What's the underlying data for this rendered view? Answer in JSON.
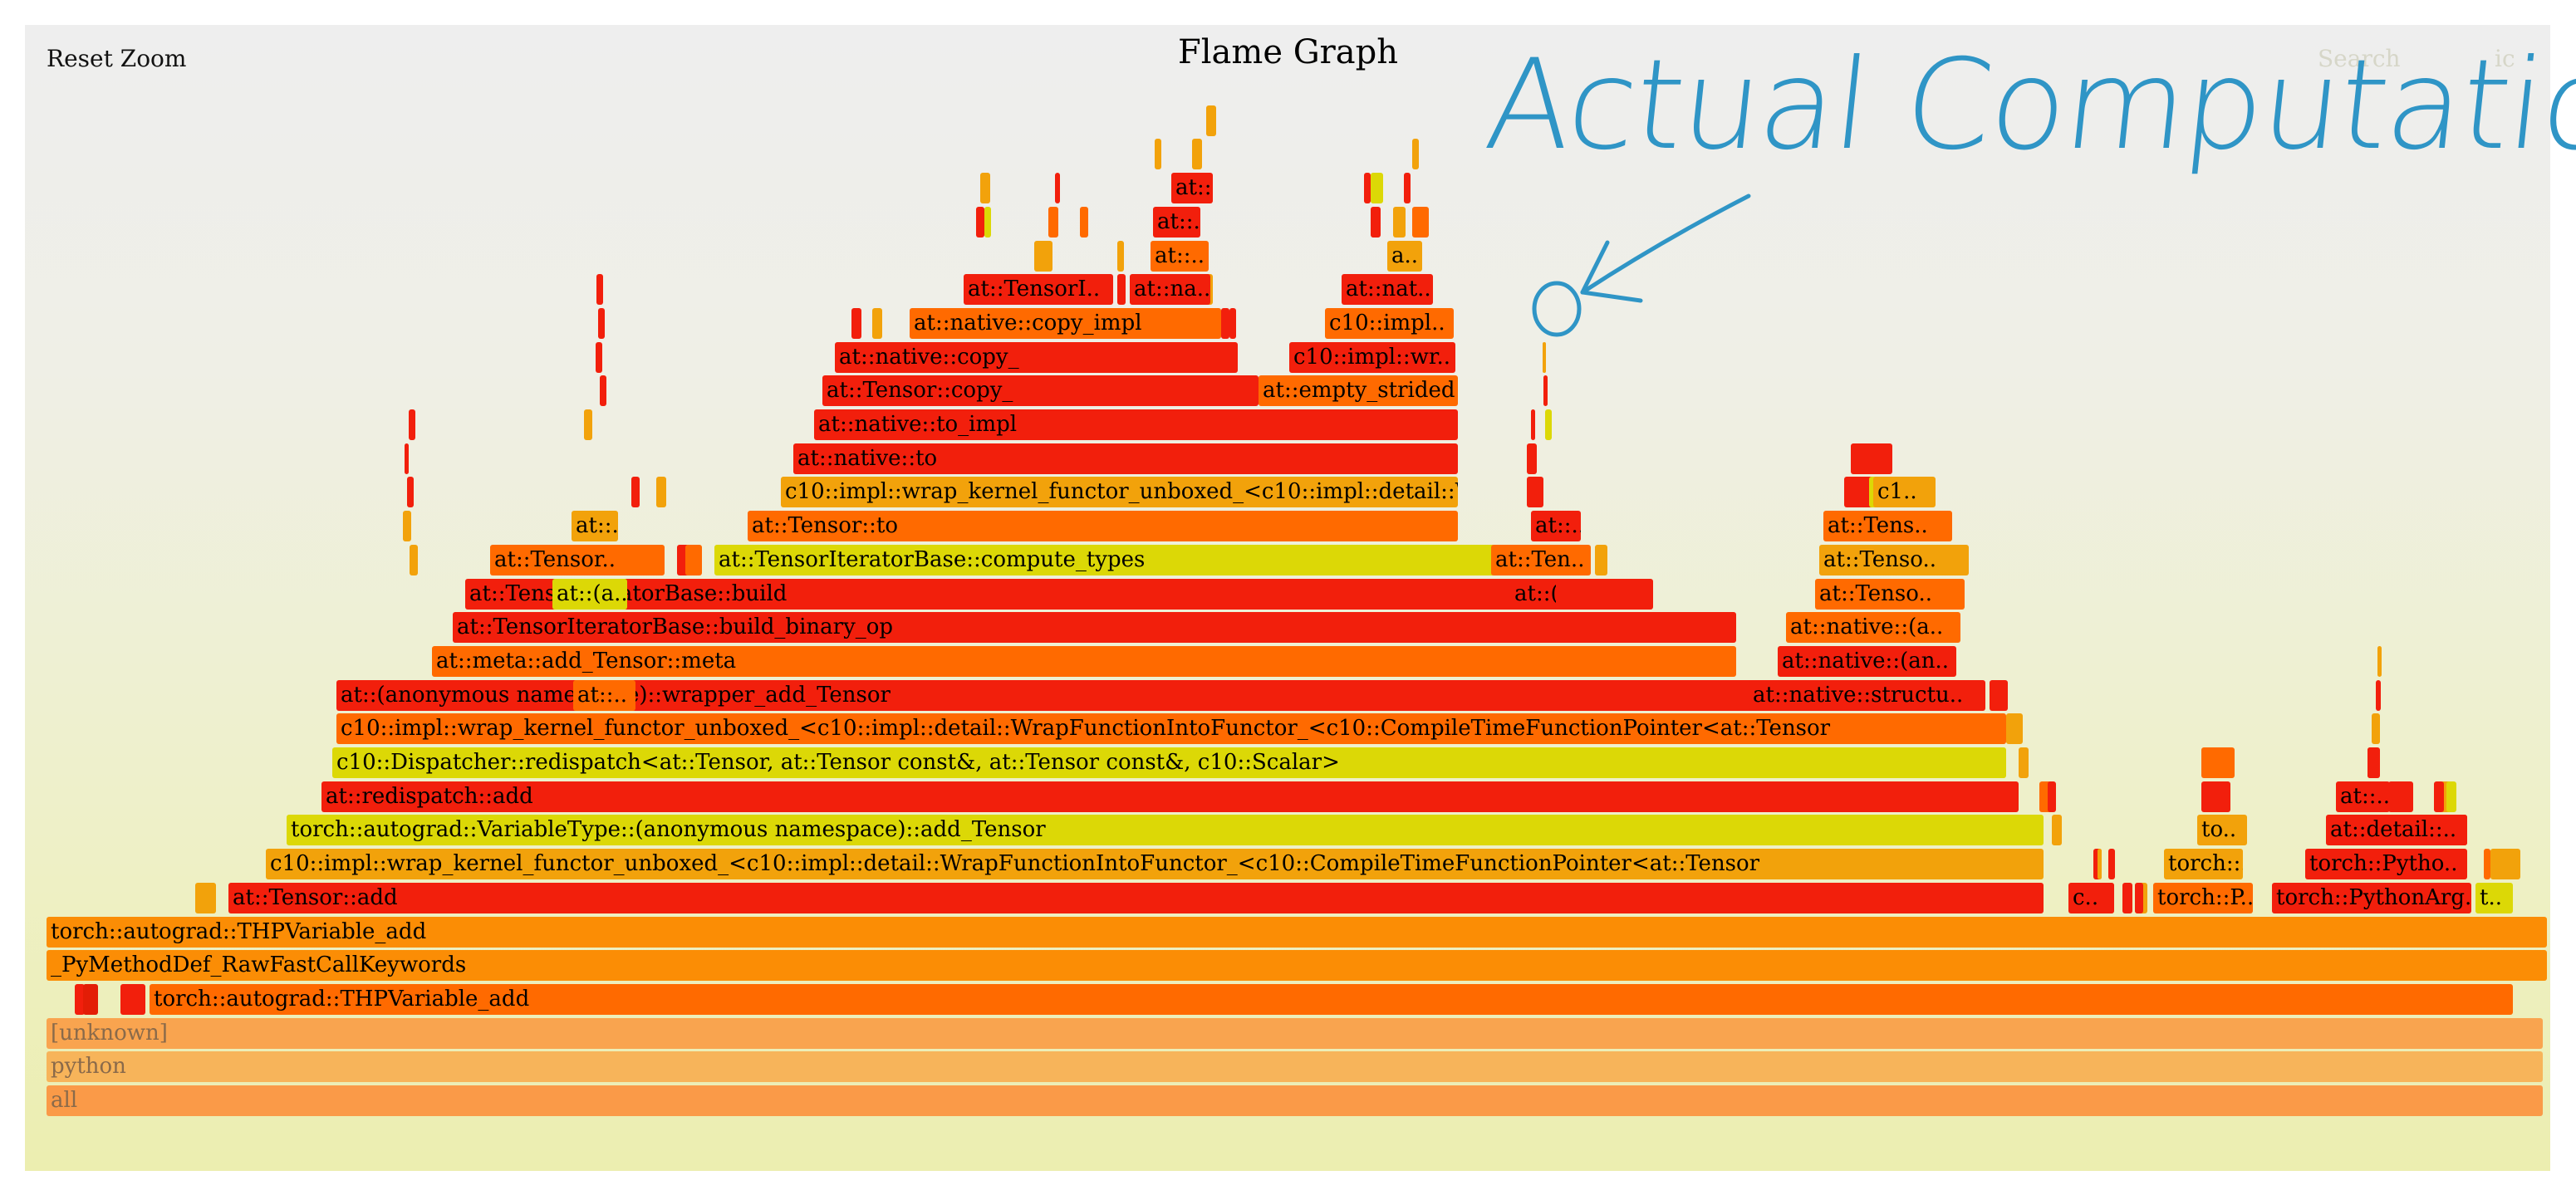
{
  "controls": {
    "reset_zoom": "Reset Zoom",
    "search": "Search",
    "ic": "ic"
  },
  "title": "Flame Graph",
  "annotation": {
    "text": "Actual Computation",
    "color": "#2f95c6"
  },
  "palette": {
    "red": "#f21f0c",
    "orange": "#ff6a00",
    "orange2": "#fb8d05",
    "yellow": "#dcd806",
    "amber": "#f2a20b",
    "faded1": "#f9a44f",
    "faded2": "#f7b45a",
    "faded3": "#fa9a48",
    "darkred": "#e31d06"
  },
  "frames": [
    {
      "label": "all",
      "color": "faded3",
      "faded": true
    },
    {
      "label": "python",
      "color": "faded2",
      "faded": true
    },
    {
      "label": "[unknown]",
      "color": "faded1",
      "faded": true
    },
    {
      "label": "torch::autograd::THPVariable_add",
      "color": "orange"
    },
    {
      "label": "_PyMethodDef_RawFastCallKeywords",
      "color": "orange2"
    },
    {
      "label": "torch::autograd::THPVariable_add",
      "color": "orange2"
    },
    {
      "label": "at::Tensor::add",
      "color": "red"
    },
    {
      "label": "c10::impl::wrap_kernel_functor_unboxed_<c10::impl::detail::WrapFunctionIntoFunctor_<c10::CompileTimeFunctionPointer<at::Tensor",
      "color": "amber"
    },
    {
      "label": "torch::autograd::VariableType::(anonymous namespace)::add_Tensor",
      "color": "yellow"
    },
    {
      "label": "at::redispatch::add",
      "color": "red"
    },
    {
      "label": "c10::Dispatcher::redispatch<at::Tensor, at::Tensor const&, at::Tensor const&, c10::Scalar>",
      "color": "yellow"
    },
    {
      "label": "c10::impl::wrap_kernel_functor_unboxed_<c10::impl::detail::WrapFunctionIntoFunctor_<c10::CompileTimeFunctionPointer<at::Tensor",
      "color": "orange"
    },
    {
      "label": "at::(anonymous namespace)::wrapper_add_Tensor",
      "color": "red"
    },
    {
      "label": "at::meta::add_Tensor::meta",
      "color": "orange"
    },
    {
      "label": "at::TensorIteratorBase::build_binary_op",
      "color": "red"
    },
    {
      "label": "at::TensorIteratorBase::build",
      "color": "red"
    },
    {
      "label": "at::TensorIteratorBase::compute_types",
      "color": "yellow"
    },
    {
      "label": "at::Tensor::to",
      "color": "orange"
    },
    {
      "label": "c10::impl::wrap_kernel_functor_unboxed_<c10::impl::detail::W..",
      "color": "amber"
    },
    {
      "label": "at::native::to",
      "color": "red"
    },
    {
      "label": "at::native::to_impl",
      "color": "red"
    },
    {
      "label": "at::Tensor::copy_",
      "color": "red"
    },
    {
      "label": "at::empty_strided",
      "color": "orange"
    },
    {
      "label": "at::native::copy_",
      "color": "red"
    },
    {
      "label": "c10::impl::wr..",
      "color": "red"
    },
    {
      "label": "at::native::copy_impl",
      "color": "orange"
    },
    {
      "label": "c10::impl..",
      "color": "orange"
    },
    {
      "label": "at::TensorI..",
      "color": "red"
    },
    {
      "label": "at::na..",
      "color": "red"
    },
    {
      "label": "at::nat..",
      "color": "red"
    },
    {
      "label": "at::..",
      "color": "orange"
    },
    {
      "label": "a..",
      "color": "amber"
    },
    {
      "label": "at::..",
      "color": "red"
    },
    {
      "label": "at::..",
      "color": "red"
    },
    {
      "label": "at::..",
      "color": "orange"
    },
    {
      "label": "at::(a..",
      "color": "yellow"
    },
    {
      "label": "at::..",
      "color": "orange"
    },
    {
      "label": "at::..",
      "color": "amber"
    },
    {
      "label": "at::Tensor..",
      "color": "orange"
    },
    {
      "label": "at::(..",
      "color": "red"
    },
    {
      "label": "at::..",
      "color": "red"
    },
    {
      "label": "at::Ten..",
      "color": "orange"
    },
    {
      "label": "at::native::structu..",
      "color": "red"
    },
    {
      "label": "at::native::(an..",
      "color": "red"
    },
    {
      "label": "at::native::(a..",
      "color": "orange"
    },
    {
      "label": "at::Tenso..",
      "color": "orange"
    },
    {
      "label": "at::Tenso..",
      "color": "amber"
    },
    {
      "label": "at::Tens..",
      "color": "orange"
    },
    {
      "label": "c1..",
      "color": "amber"
    },
    {
      "label": "c..",
      "color": "red"
    },
    {
      "label": "torch::P..",
      "color": "orange"
    },
    {
      "label": "torch::..",
      "color": "amber"
    },
    {
      "label": "to..",
      "color": "amber"
    },
    {
      "label": "torch::PythonArg..",
      "color": "red"
    },
    {
      "label": "t..",
      "color": "yellow"
    },
    {
      "label": "torch::Pytho..",
      "color": "red"
    },
    {
      "label": "at::detail::..",
      "color": "red"
    },
    {
      "label": "at::..",
      "color": "red"
    }
  ]
}
